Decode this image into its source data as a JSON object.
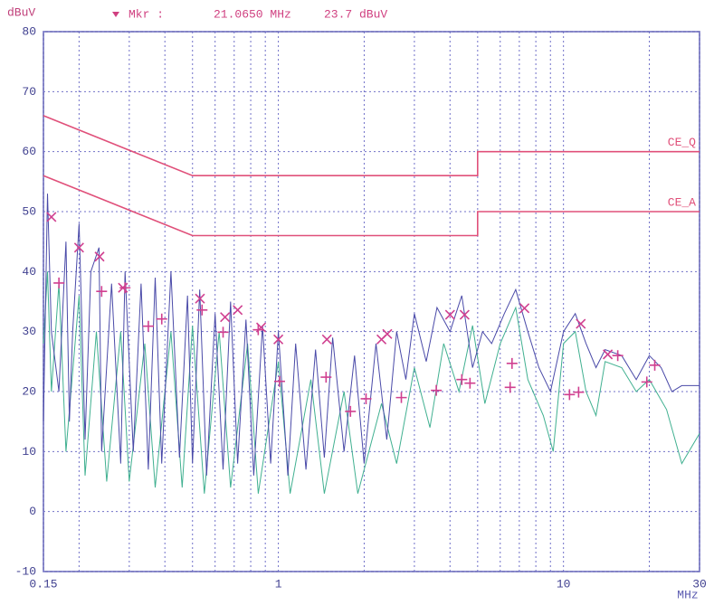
{
  "chart_data": {
    "type": "line",
    "y_label": "dBuV",
    "x_label": "MHz",
    "marker_readout": {
      "label": "Mkr :",
      "frequency": "21.0650 MHz",
      "level": "23.7 dBuV"
    },
    "log_x": true,
    "grid": true,
    "xlim": [
      0.15,
      30
    ],
    "xticks": [
      0.15,
      1,
      10,
      30
    ],
    "minor_xticks": [
      0.2,
      0.3,
      0.4,
      0.5,
      0.6,
      0.7,
      0.8,
      0.9,
      2,
      3,
      4,
      5,
      6,
      7,
      8,
      9,
      20
    ],
    "ylim": [
      -10,
      80
    ],
    "yticks": [
      -10,
      0,
      10,
      20,
      30,
      40,
      50,
      60,
      70,
      80
    ],
    "series": [
      {
        "name": "CE_Q",
        "color": "#e0507a",
        "style": "line",
        "x": [
          0.15,
          0.5,
          5,
          5,
          30
        ],
        "values": [
          66,
          56,
          56,
          60,
          60
        ]
      },
      {
        "name": "CE_A",
        "color": "#e0507a",
        "style": "line",
        "x": [
          0.15,
          0.5,
          5,
          5,
          30
        ],
        "values": [
          56,
          46,
          46,
          50,
          50
        ]
      },
      {
        "color": "#40b090",
        "style": "line",
        "x": [
          0.15,
          0.155,
          0.16,
          0.17,
          0.18,
          0.2,
          0.21,
          0.23,
          0.25,
          0.28,
          0.3,
          0.34,
          0.37,
          0.42,
          0.46,
          0.5,
          0.55,
          0.62,
          0.68,
          0.78,
          0.85,
          1.0,
          1.1,
          1.3,
          1.45,
          1.7,
          1.9,
          2.3,
          2.6,
          3.0,
          3.4,
          3.8,
          4.3,
          4.8,
          5.3,
          6,
          6.8,
          7.5,
          8.5,
          9.2,
          10,
          11,
          12,
          13,
          14,
          16,
          18,
          20,
          23,
          26,
          30
        ],
        "values": [
          28,
          40,
          20,
          38,
          10,
          36,
          6,
          30,
          5,
          30,
          5,
          28,
          4,
          30,
          4,
          31,
          3,
          30,
          4,
          28,
          3,
          25,
          3,
          22,
          3,
          20,
          3,
          18,
          8,
          24,
          14,
          28,
          20,
          31,
          18,
          28,
          34,
          22,
          16,
          10,
          28,
          30,
          20,
          16,
          25,
          24,
          20,
          22,
          17,
          8,
          13
        ]
      },
      {
        "color": "#4a4aa8",
        "style": "line",
        "x": [
          0.15,
          0.155,
          0.16,
          0.17,
          0.18,
          0.185,
          0.19,
          0.2,
          0.21,
          0.22,
          0.235,
          0.24,
          0.26,
          0.28,
          0.29,
          0.31,
          0.33,
          0.35,
          0.37,
          0.39,
          0.42,
          0.45,
          0.48,
          0.5,
          0.53,
          0.56,
          0.6,
          0.64,
          0.68,
          0.72,
          0.77,
          0.82,
          0.88,
          0.94,
          1.0,
          1.08,
          1.15,
          1.25,
          1.35,
          1.45,
          1.55,
          1.7,
          1.85,
          2.0,
          2.2,
          2.4,
          2.6,
          2.8,
          3.0,
          3.3,
          3.6,
          4.0,
          4.4,
          4.8,
          5.2,
          5.6,
          6.2,
          6.8,
          7.5,
          8.2,
          9.0,
          10,
          11,
          12,
          13,
          14,
          16,
          18,
          20,
          22,
          24,
          26,
          30
        ],
        "values": [
          15,
          53,
          30,
          20,
          45,
          15,
          30,
          48,
          12,
          40,
          44,
          10,
          38,
          8,
          40,
          10,
          38,
          7,
          39,
          8,
          40,
          9,
          36,
          8,
          37,
          6,
          33,
          7,
          35,
          8,
          32,
          6,
          31,
          8,
          30,
          6,
          28,
          7,
          27,
          9,
          29,
          10,
          26,
          8,
          28,
          12,
          30,
          22,
          33,
          25,
          34,
          30,
          36,
          24,
          30,
          28,
          33,
          37,
          30,
          24,
          20,
          30,
          33,
          28,
          24,
          27,
          26,
          22,
          26,
          24,
          20,
          21,
          21
        ]
      },
      {
        "color": "#d04090",
        "style": "marker",
        "marker": "x",
        "x": [
          0.16,
          0.2,
          0.236,
          0.285,
          0.531,
          0.65,
          0.72,
          0.87,
          1.0,
          1.48,
          2.3,
          2.41,
          4.0,
          4.5,
          7.3,
          11.5,
          14.3
        ],
        "values": [
          49.1,
          44,
          42.5,
          37.3,
          35.5,
          32.4,
          33.6,
          30.7,
          28.7,
          28.7,
          28.7,
          29.6,
          32.8,
          32.8,
          33.9,
          31.3,
          26.2
        ]
      },
      {
        "color": "#d04090",
        "style": "marker",
        "marker": "+",
        "x": [
          0.17,
          0.24,
          0.29,
          0.35,
          0.39,
          0.54,
          0.64,
          0.85,
          1.01,
          1.47,
          1.79,
          2.03,
          2.7,
          3.58,
          4.4,
          4.7,
          6.6,
          6.5,
          10.5,
          11.3,
          15.5,
          19.6,
          20.9
        ],
        "values": [
          38.1,
          36.7,
          37.3,
          30.9,
          32.1,
          33.6,
          29.9,
          30.3,
          21.7,
          22.4,
          16.7,
          18.8,
          19.0,
          20.2,
          22,
          21.4,
          24.7,
          20.7,
          19.5,
          19.9,
          26,
          21.6,
          24.4
        ]
      }
    ]
  }
}
